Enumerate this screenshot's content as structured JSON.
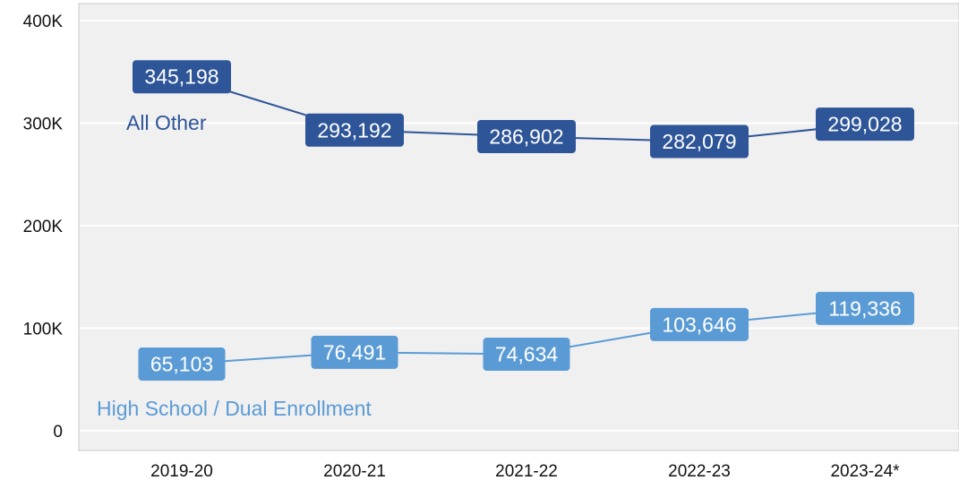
{
  "chart_data": {
    "type": "line",
    "title": "",
    "xlabel": "",
    "ylabel": "",
    "categories": [
      "2019-20",
      "2020-21",
      "2021-22",
      "2022-23",
      "2023-24*"
    ],
    "ylim": [
      0,
      400000
    ],
    "yticks": [
      0,
      100000,
      200000,
      300000,
      400000
    ],
    "ytick_labels": [
      "0",
      "100K",
      "200K",
      "300K",
      "400K"
    ],
    "grid": true,
    "legend": "none (series labeled directly on chart)",
    "background_color": "#f0f0f0",
    "series": [
      {
        "name": "All Other",
        "color": "#2e5598",
        "values": [
          345198,
          293192,
          286902,
          282079,
          299028
        ],
        "labels": [
          "345,198",
          "293,192",
          "286,902",
          "282,079",
          "299,028"
        ]
      },
      {
        "name": "High School / Dual Enrollment",
        "color": "#5b9bd5",
        "values": [
          65103,
          76491,
          74634,
          103646,
          119336
        ],
        "labels": [
          "65,103",
          "76,491",
          "74,634",
          "103,646",
          "119,336"
        ]
      }
    ]
  }
}
